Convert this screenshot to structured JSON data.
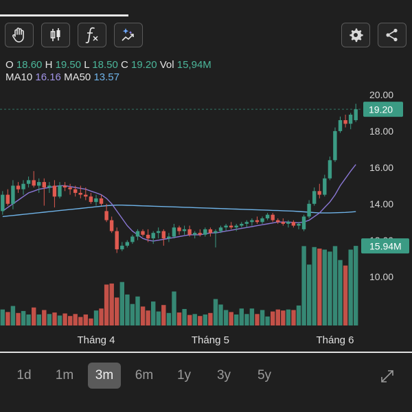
{
  "toolbar": {
    "icons": [
      "hand-icon",
      "candlestick-icon",
      "function-icon",
      "magic-draw-icon",
      "gear-icon",
      "share-icon"
    ]
  },
  "ohlc": {
    "o_label": "O",
    "o": "18.60",
    "h_label": "H",
    "h": "19.50",
    "l_label": "L",
    "l": "18.50",
    "c_label": "C",
    "c": "19.20",
    "vol_label": "Vol",
    "vol": "15,94M"
  },
  "ma": {
    "ma10_label": "MA10",
    "ma10": "16.16",
    "ma50_label": "MA50",
    "ma50": "13.57"
  },
  "colors": {
    "up": "#3b9b84",
    "down": "#e05a50",
    "ma10": "#8b78d6",
    "ma50": "#6fb3e8",
    "price_tag": "#3b9b84"
  },
  "chart_data": {
    "type": "candlestick",
    "y_ticks": [
      "20.00",
      "18.00",
      "16.00",
      "14.00",
      "12.00",
      "10.00"
    ],
    "ylim": [
      9.2,
      20.6
    ],
    "x_labels": [
      "Tháng 4",
      "Tháng 5",
      "Tháng 6"
    ],
    "last_price_label": "19.20",
    "last_volume_label": "15.94M",
    "ohlc": [
      [
        13.6,
        14.7,
        13.4,
        14.5
      ],
      [
        14.5,
        14.8,
        13.9,
        14.0
      ],
      [
        14.0,
        15.3,
        13.7,
        15.0
      ],
      [
        15.0,
        15.2,
        14.6,
        14.8
      ],
      [
        14.8,
        15.3,
        14.5,
        15.1
      ],
      [
        15.1,
        15.5,
        14.9,
        15.3
      ],
      [
        15.3,
        15.8,
        14.9,
        15.0
      ],
      [
        15.0,
        15.4,
        14.6,
        15.2
      ],
      [
        15.2,
        15.4,
        13.9,
        14.9
      ],
      [
        14.9,
        15.2,
        14.6,
        15.0
      ],
      [
        15.0,
        15.3,
        13.8,
        14.4
      ],
      [
        14.4,
        15.2,
        14.3,
        15.0
      ],
      [
        15.0,
        15.2,
        14.7,
        14.9
      ],
      [
        14.9,
        15.1,
        14.5,
        14.8
      ],
      [
        14.8,
        15.0,
        14.4,
        14.6
      ],
      [
        14.6,
        15.0,
        14.3,
        14.5
      ],
      [
        14.5,
        14.9,
        14.2,
        14.4
      ],
      [
        14.4,
        14.6,
        14.0,
        14.1
      ],
      [
        14.1,
        14.5,
        13.9,
        14.3
      ],
      [
        14.3,
        14.5,
        13.9,
        14.0
      ],
      [
        13.6,
        14.0,
        13.0,
        13.1
      ],
      [
        13.1,
        13.3,
        12.4,
        12.5
      ],
      [
        12.5,
        12.7,
        11.3,
        11.5
      ],
      [
        11.5,
        11.9,
        11.4,
        11.7
      ],
      [
        11.7,
        12.0,
        11.6,
        11.9
      ],
      [
        11.9,
        12.3,
        11.8,
        12.2
      ],
      [
        12.2,
        12.6,
        12.0,
        12.5
      ],
      [
        12.5,
        12.6,
        12.2,
        12.3
      ],
      [
        12.3,
        12.6,
        11.9,
        12.1
      ],
      [
        12.1,
        12.5,
        11.8,
        12.4
      ],
      [
        12.4,
        12.7,
        12.1,
        12.5
      ],
      [
        12.5,
        12.6,
        11.7,
        12.1
      ],
      [
        12.1,
        12.4,
        11.9,
        12.2
      ],
      [
        12.2,
        12.9,
        12.1,
        12.7
      ],
      [
        12.7,
        12.8,
        12.3,
        12.5
      ],
      [
        12.5,
        12.8,
        12.3,
        12.6
      ],
      [
        12.6,
        12.8,
        12.2,
        12.3
      ],
      [
        12.3,
        12.5,
        12.1,
        12.4
      ],
      [
        12.4,
        12.6,
        12.2,
        12.3
      ],
      [
        12.3,
        12.7,
        12.2,
        12.6
      ],
      [
        12.6,
        12.7,
        12.2,
        12.4
      ],
      [
        12.4,
        12.6,
        11.6,
        12.5
      ],
      [
        12.5,
        12.8,
        12.4,
        12.7
      ],
      [
        12.7,
        12.9,
        12.5,
        12.8
      ],
      [
        12.8,
        13.0,
        12.6,
        12.7
      ],
      [
        12.7,
        12.9,
        12.5,
        12.8
      ],
      [
        12.8,
        13.0,
        12.7,
        12.9
      ],
      [
        12.9,
        13.1,
        12.7,
        13.0
      ],
      [
        13.0,
        13.2,
        12.8,
        13.1
      ],
      [
        13.1,
        13.3,
        12.9,
        13.0
      ],
      [
        13.0,
        13.3,
        12.9,
        13.2
      ],
      [
        13.2,
        13.5,
        13.1,
        13.4
      ],
      [
        13.4,
        13.5,
        13.0,
        13.1
      ],
      [
        13.1,
        13.2,
        12.9,
        13.0
      ],
      [
        13.0,
        13.2,
        12.8,
        12.9
      ],
      [
        12.9,
        13.1,
        12.7,
        13.0
      ],
      [
        13.0,
        13.1,
        12.7,
        12.8
      ],
      [
        12.8,
        13.0,
        12.6,
        12.9
      ],
      [
        12.6,
        13.4,
        12.5,
        13.3
      ],
      [
        13.3,
        14.2,
        13.2,
        14.0
      ],
      [
        14.0,
        14.9,
        13.9,
        14.7
      ],
      [
        14.7,
        15.1,
        14.3,
        14.5
      ],
      [
        14.5,
        15.6,
        14.4,
        15.4
      ],
      [
        15.4,
        16.6,
        15.3,
        16.4
      ],
      [
        16.4,
        18.2,
        16.3,
        18.0
      ],
      [
        18.0,
        18.8,
        17.9,
        18.6
      ],
      [
        18.6,
        18.9,
        18.2,
        18.4
      ],
      [
        18.4,
        19.0,
        18.1,
        18.9
      ],
      [
        18.6,
        19.5,
        18.5,
        19.2
      ]
    ],
    "volume_millions": [
      3.2,
      2.7,
      3.9,
      2.5,
      2.9,
      2.2,
      3.6,
      2.2,
      3.1,
      2.3,
      2.6,
      2.0,
      2.4,
      1.9,
      2.3,
      1.7,
      2.2,
      1.4,
      3.0,
      3.4,
      8.2,
      8.4,
      5.6,
      8.7,
      6.2,
      4.3,
      5.8,
      3.8,
      3.0,
      4.8,
      2.8,
      4.1,
      2.5,
      6.8,
      2.6,
      3.3,
      2.1,
      2.3,
      1.9,
      2.2,
      2.5,
      5.3,
      4.2,
      3.1,
      2.7,
      2.2,
      3.4,
      2.3,
      3.4,
      2.3,
      3.1,
      1.8,
      2.8,
      3.2,
      3.0,
      3.2,
      3.1,
      4.0,
      15.9,
      12.2,
      15.7,
      15.4,
      15.2,
      14.8,
      15.9,
      13.1,
      12.0,
      15.2,
      15.94
    ],
    "volume_max": 16.5,
    "ma10": [
      13.6,
      13.8,
      14.0,
      14.2,
      14.4,
      14.6,
      14.7,
      14.8,
      14.85,
      14.9,
      14.95,
      15.0,
      15.0,
      14.95,
      14.9,
      14.85,
      14.8,
      14.7,
      14.6,
      14.5,
      14.3,
      14.0,
      13.6,
      13.2,
      12.8,
      12.5,
      12.3,
      12.1,
      12.0,
      11.95,
      12.0,
      12.05,
      12.1,
      12.15,
      12.2,
      12.25,
      12.3,
      12.3,
      12.3,
      12.35,
      12.4,
      12.4,
      12.45,
      12.5,
      12.55,
      12.6,
      12.65,
      12.7,
      12.75,
      12.8,
      12.85,
      12.9,
      12.95,
      13.0,
      13.0,
      13.0,
      12.98,
      12.96,
      13.0,
      13.1,
      13.3,
      13.5,
      13.8,
      14.1,
      14.5,
      15.0,
      15.4,
      15.8,
      16.16
    ],
    "ma50": [
      13.3,
      13.33,
      13.36,
      13.39,
      13.42,
      13.45,
      13.48,
      13.51,
      13.54,
      13.57,
      13.6,
      13.63,
      13.66,
      13.69,
      13.72,
      13.75,
      13.78,
      13.81,
      13.84,
      13.87,
      13.9,
      13.92,
      13.93,
      13.93,
      13.92,
      13.91,
      13.9,
      13.89,
      13.88,
      13.87,
      13.86,
      13.85,
      13.84,
      13.83,
      13.82,
      13.81,
      13.8,
      13.79,
      13.78,
      13.77,
      13.76,
      13.75,
      13.74,
      13.73,
      13.72,
      13.71,
      13.7,
      13.69,
      13.68,
      13.67,
      13.66,
      13.65,
      13.64,
      13.63,
      13.62,
      13.61,
      13.6,
      13.58,
      13.56,
      13.54,
      13.52,
      13.5,
      13.5,
      13.5,
      13.51,
      13.52,
      13.53,
      13.55,
      13.57
    ],
    "grid": false
  },
  "time_ranges": {
    "items": [
      "1d",
      "1m",
      "3m",
      "6m",
      "1y",
      "3y",
      "5y"
    ],
    "active": "3m"
  }
}
